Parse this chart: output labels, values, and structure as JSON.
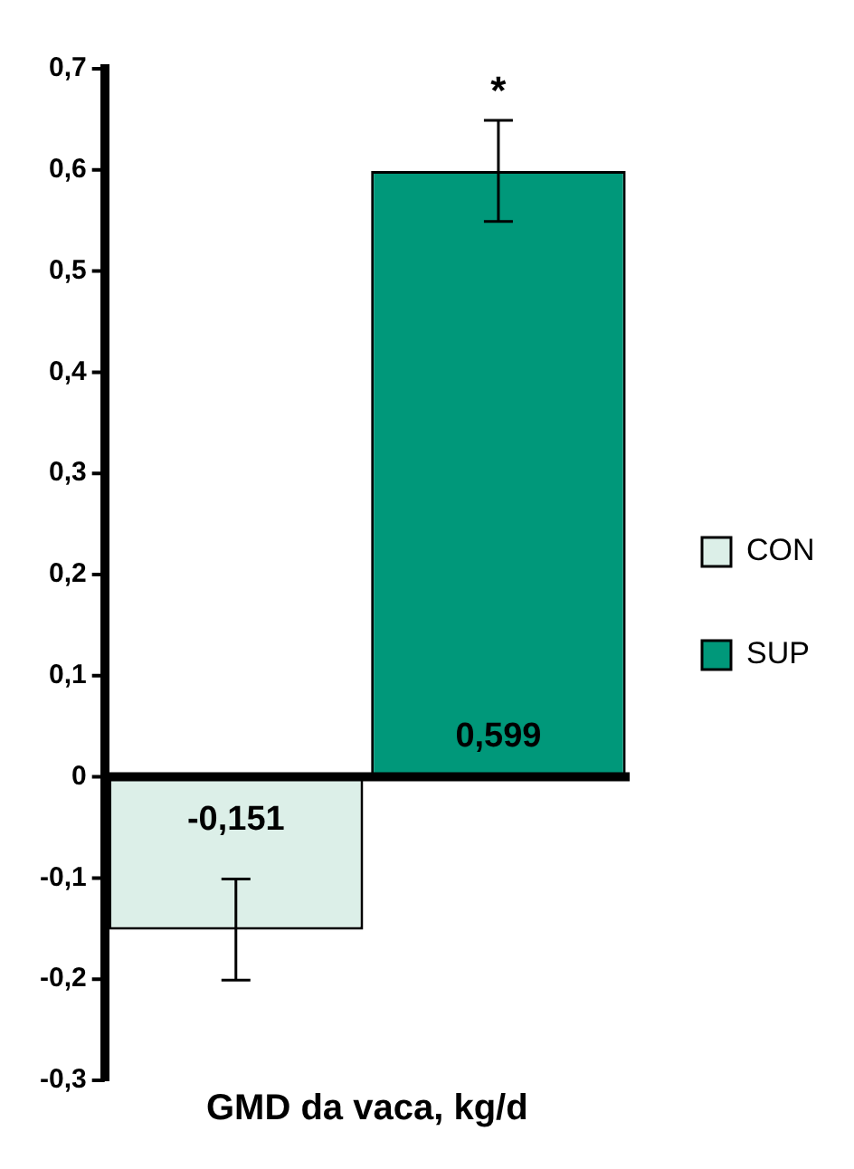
{
  "chart_data": {
    "type": "bar",
    "xlabel": "GMD da vaca, kg/d",
    "categories": [
      null,
      null
    ],
    "series": [
      {
        "name": "CON",
        "color": "#dcefe8",
        "values": [
          -0.151,
          null
        ],
        "errors": [
          0.05,
          null
        ],
        "value_labels": [
          "-0,151",
          null
        ]
      },
      {
        "name": "SUP",
        "color": "#00987a",
        "values": [
          null,
          0.599
        ],
        "errors": [
          null,
          0.05
        ],
        "value_labels": [
          null,
          "0,599"
        ]
      }
    ],
    "ylim": [
      -0.3,
      0.7
    ],
    "yticks": [
      {
        "value": -0.3,
        "label": "-0,3"
      },
      {
        "value": -0.2,
        "label": "-0,2"
      },
      {
        "value": -0.1,
        "label": "-0,1"
      },
      0,
      {
        "value": 0.1,
        "label": "0,1"
      },
      {
        "value": 0.2,
        "label": "0,2"
      },
      {
        "value": 0.3,
        "label": "0,3"
      },
      {
        "value": 0.4,
        "label": "0,4"
      },
      {
        "value": 0.5,
        "label": "0,5"
      },
      {
        "value": 0.6,
        "label": "0,6"
      },
      {
        "value": 0.7,
        "label": "0,7"
      }
    ],
    "annotations": [
      "*"
    ],
    "legend": "right"
  }
}
